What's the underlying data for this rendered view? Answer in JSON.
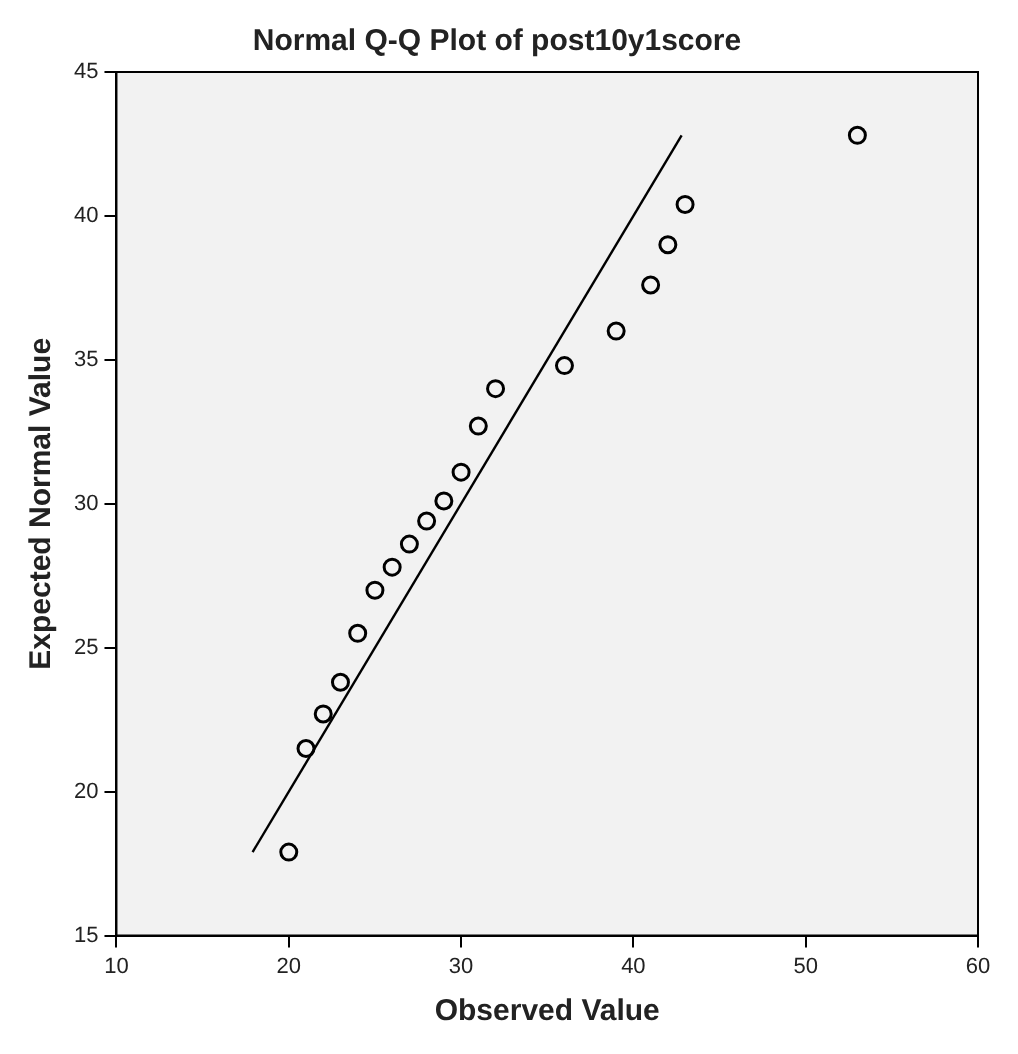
{
  "chart_data": {
    "type": "scatter",
    "title": "Normal Q-Q Plot of post10y1score",
    "xlabel": "Observed Value",
    "ylabel": "Expected Normal Value",
    "x": [
      20,
      21,
      22,
      23,
      24,
      25,
      26,
      27,
      28,
      29,
      30,
      31,
      32,
      36,
      39,
      41,
      42,
      43,
      53
    ],
    "series": [
      {
        "color": "#000000",
        "values": [
          17.9,
          21.5,
          22.7,
          23.8,
          25.5,
          27.0,
          27.8,
          28.6,
          29.4,
          30.1,
          31.1,
          32.7,
          34.0,
          34.8,
          36.0,
          37.6,
          39.0,
          40.4,
          42.8
        ]
      },
      {
        "type": "line",
        "marker": "none",
        "color": "#000000",
        "x": [
          17.9,
          42.8
        ],
        "values": [
          17.9,
          42.8
        ]
      }
    ],
    "marker": "circle",
    "xlim": [
      10,
      60
    ],
    "ylim": [
      15,
      45
    ],
    "xticks": [
      10,
      20,
      30,
      40,
      50,
      60
    ],
    "yticks": [
      15,
      20,
      25,
      30,
      35,
      40,
      45
    ],
    "grid": false,
    "legend": false
  }
}
